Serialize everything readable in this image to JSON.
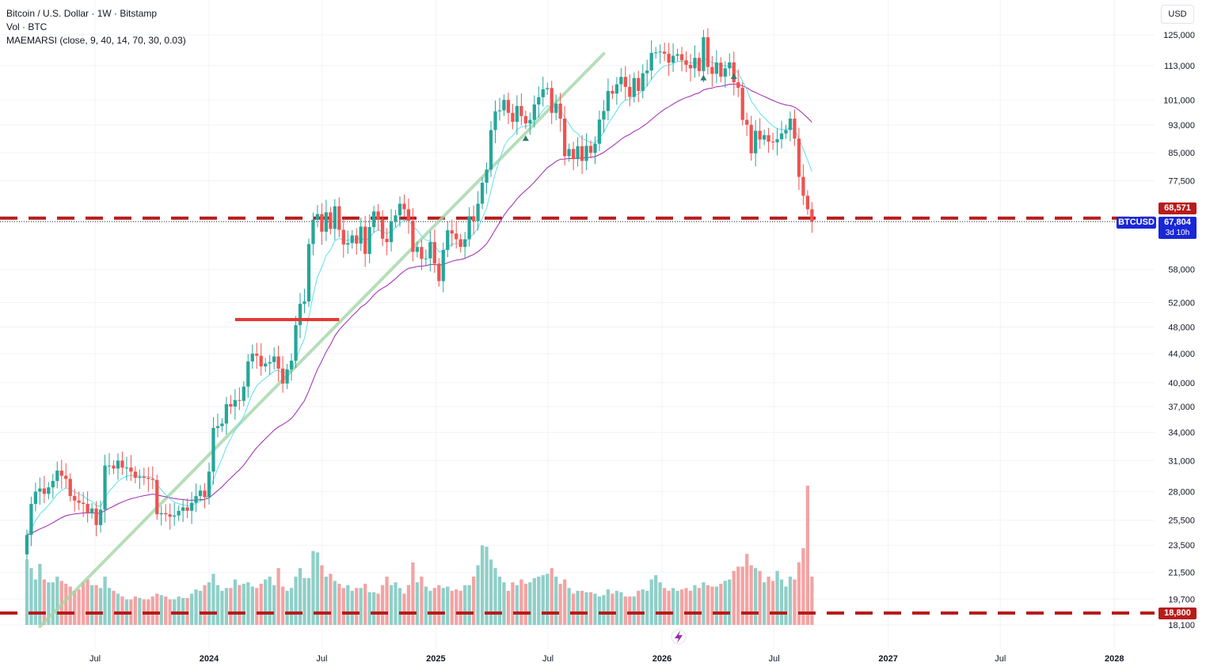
{
  "legend": {
    "title": "Bitcoin / U.S. Dollar · 1W · Bitstamp",
    "vol": "Vol · BTC",
    "indicator": "MAEMARSI (close, 9, 40, 14, 70, 30, 0.03)"
  },
  "currency_button": "USD",
  "symbol_badge": "BTCUSD",
  "last_price": "67,804",
  "countdown": "3d 10h",
  "level_badge_upper": "68,571",
  "level_badge_lower": "18,800",
  "colors": {
    "up": "#26a69a",
    "down": "#ef5350",
    "vol_up": "#8fcfc8",
    "vol_down": "#f3a3a3",
    "ma_fast": "#5ee0f0",
    "ma_slow": "#9c27b0",
    "level": "#b71c1c",
    "trend": "#a5d6a7",
    "support": "#e53935",
    "accent": "#1927d6"
  },
  "chart_data": {
    "type": "candlestick",
    "interval": "1W",
    "y_scale": "log",
    "ylim": [
      17500,
      128000
    ],
    "y_ticks": [
      125000,
      113000,
      101000,
      93000,
      85000,
      77500,
      58000,
      52000,
      48000,
      44000,
      40000,
      37000,
      34000,
      31000,
      28000,
      25500,
      23500,
      21500,
      19700,
      18100
    ],
    "x_ticks": [
      {
        "label": "Jul",
        "date": "2023-07-01"
      },
      {
        "label": "2024",
        "date": "2024-01-01"
      },
      {
        "label": "Jul",
        "date": "2024-07-01"
      },
      {
        "label": "2025",
        "date": "2025-01-01"
      },
      {
        "label": "Jul",
        "date": "2025-07-01"
      },
      {
        "label": "2026",
        "date": "2026-01-01"
      },
      {
        "label": "Jul",
        "date": "2026-07-01"
      },
      {
        "label": "2027",
        "date": "2027-01-01"
      },
      {
        "label": "Jul",
        "date": "2027-07-01"
      },
      {
        "label": "2028",
        "date": "2028-01-01"
      }
    ],
    "first_week": "2023-03-13",
    "close": [
      24300,
      26900,
      28000,
      28300,
      27800,
      28400,
      29000,
      30000,
      29500,
      29200,
      27600,
      27200,
      27000,
      26900,
      26100,
      26500,
      25100,
      26400,
      30500,
      30500,
      30200,
      31000,
      30300,
      30300,
      29900,
      29300,
      29400,
      29300,
      29200,
      29100,
      26000,
      26100,
      26000,
      25800,
      25900,
      26300,
      26600,
      26300,
      27000,
      27600,
      28100,
      27500,
      29900,
      34500,
      34700,
      35000,
      37300,
      37000,
      37800,
      37700,
      39500,
      42900,
      44000,
      43700,
      42200,
      42600,
      42800,
      43600,
      41900,
      39900,
      41800,
      43000,
      48300,
      51800,
      52200,
      63000,
      68200,
      69500,
      65600,
      69900,
      66200,
      71300,
      66000,
      62900,
      63200,
      64800,
      63100,
      66700,
      61000,
      66600,
      70100,
      68300,
      64100,
      63400,
      67800,
      69200,
      71900,
      70600,
      68000,
      61400,
      62400,
      60000,
      60100,
      63400,
      59100,
      55800,
      61800,
      65900,
      65200,
      64000,
      62400,
      64000,
      69000,
      67900,
      71900,
      77000,
      80400,
      91500,
      97300,
      97600,
      101000,
      96800,
      94000,
      99000,
      95800,
      93500,
      94600,
      99500,
      101900,
      104600,
      105000,
      96800,
      99800,
      95000,
      84000,
      86000,
      83200,
      86800,
      82700,
      86900,
      84900,
      87500,
      94700,
      97400,
      104000,
      103100,
      106300,
      108900,
      105400,
      102000,
      108500,
      104000,
      110200,
      111200,
      117800,
      118000,
      118300,
      117500,
      114100,
      116700,
      117300,
      115000,
      113300,
      112000,
      115900,
      111000,
      124000,
      112500,
      110000,
      114100,
      109000,
      112000,
      114200,
      107000,
      105100,
      94600,
      93100,
      84800,
      91300,
      88700,
      90000,
      88100,
      87900,
      88800,
      90500,
      91500,
      95000,
      89000,
      78500,
      73800,
      70600,
      67804
    ],
    "volume_btc": [
      2300,
      2000,
      1600,
      2150,
      1600,
      1500,
      1500,
      1700,
      1550,
      1450,
      1350,
      1200,
      1250,
      1500,
      1600,
      1400,
      1400,
      1300,
      1700,
      1300,
      1200,
      1100,
      1000,
      900,
      900,
      1000,
      950,
      900,
      900,
      1000,
      1100,
      1050,
      1000,
      900,
      900,
      1000,
      950,
      950,
      1100,
      1250,
      1200,
      1400,
      1500,
      1800,
      1400,
      1200,
      1300,
      1300,
      1600,
      1400,
      1450,
      1500,
      1350,
      1300,
      1450,
      1600,
      1700,
      1400,
      2000,
      1350,
      1200,
      1300,
      1700,
      2000,
      1650,
      1650,
      2600,
      2550,
      2100,
      1700,
      1800,
      1550,
      1450,
      1300,
      1400,
      1200,
      1300,
      1300,
      1450,
      1150,
      1150,
      1100,
      1400,
      1700,
      1400,
      1500,
      1300,
      1100,
      1400,
      2200,
      1500,
      1700,
      1350,
      1200,
      1300,
      1400,
      1300,
      1350,
      1200,
      1250,
      1200,
      1400,
      1400,
      1700,
      2100,
      2800,
      2750,
      2300,
      2000,
      1700,
      1500,
      1200,
      1500,
      1400,
      1600,
      1450,
      1500,
      1650,
      1700,
      1750,
      1800,
      2000,
      1700,
      1450,
      1600,
      1300,
      1100,
      1200,
      1200,
      1150,
      1150,
      1100,
      1000,
      1050,
      1250,
      1100,
      1200,
      1150,
      1000,
      1000,
      1000,
      1200,
      1250,
      1200,
      1600,
      1750,
      1500,
      1300,
      1200,
      1300,
      1200,
      1250,
      1300,
      1200,
      1400,
      1300,
      1500,
      1400,
      1350,
      1350,
      1450,
      1550,
      1600,
      1900,
      2050,
      2050,
      2500,
      2100,
      2000,
      1900,
      1500,
      1700,
      1550,
      1900,
      1600,
      1350,
      1700,
      1600,
      2200,
      2700,
      4900,
      1700
    ],
    "levels": [
      68571,
      18800
    ],
    "support_line": {
      "price": 49200,
      "from": "2024-02-12",
      "to": "2024-07-29"
    },
    "trend_line": {
      "from": {
        "date": "2023-04-03",
        "price": 18000
      },
      "to": {
        "date": "2025-09-29",
        "price": 117500
      }
    }
  }
}
